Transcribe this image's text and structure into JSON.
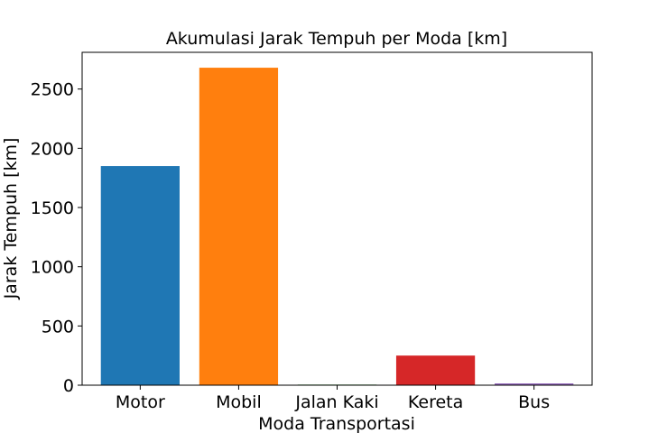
{
  "chart_data": {
    "type": "bar",
    "title": "Akumulasi Jarak Tempuh per Moda [km]",
    "xlabel": "Moda Transportasi",
    "ylabel": "Jarak Tempuh [km]",
    "categories": [
      "Motor",
      "Mobil",
      "Jalan Kaki",
      "Kereta",
      "Bus"
    ],
    "values": [
      1850,
      2680,
      5,
      250,
      15
    ],
    "colors": [
      "#1f77b4",
      "#ff7f0e",
      "#2ca02c",
      "#d62728",
      "#9467bd"
    ],
    "ylim": [
      0,
      2810
    ],
    "yticks": [
      0,
      500,
      1000,
      1500,
      2000,
      2500
    ],
    "grid": false,
    "legend": "none"
  }
}
